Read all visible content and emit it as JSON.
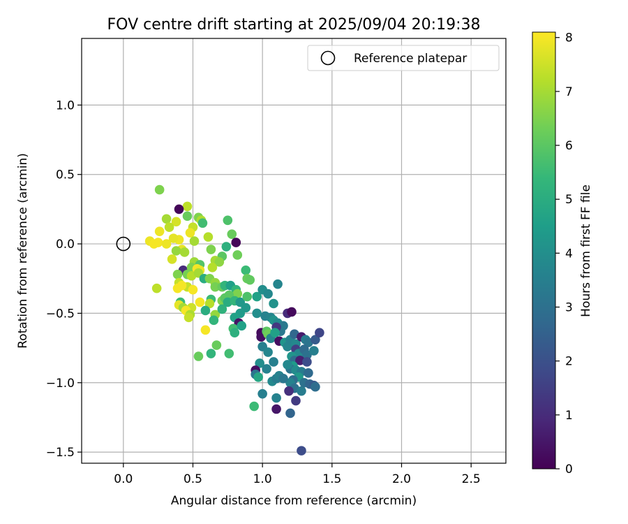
{
  "chart_data": {
    "type": "scatter",
    "title": "FOV centre drift starting at 2025/09/04 20:19:38",
    "xlabel": "Angular distance from reference (arcmin)",
    "ylabel": "Rotation from reference (arcmin)",
    "xlim": [
      -0.3,
      2.75
    ],
    "ylim": [
      -1.58,
      1.48
    ],
    "x_ticks": [
      0.0,
      0.5,
      1.0,
      1.5,
      2.0,
      2.5
    ],
    "x_tick_labels": [
      "0.0",
      "0.5",
      "1.0",
      "1.5",
      "2.0",
      "2.5"
    ],
    "y_ticks": [
      -1.5,
      -1.0,
      -0.5,
      0.0,
      0.5,
      1.0
    ],
    "y_tick_labels": [
      "−1.5",
      "−1.0",
      "−0.5",
      "0.0",
      "0.5",
      "1.0"
    ],
    "grid": true,
    "legend": {
      "placement": "top-right",
      "entries": [
        "Reference platepar"
      ]
    },
    "reference_point": {
      "x": 0.0,
      "y": 0.0,
      "label": "Reference platepar"
    },
    "colorbar": {
      "label": "Hours from first FF file",
      "colormap": "viridis",
      "range": [
        0,
        8.1
      ],
      "ticks": [
        0,
        1,
        2,
        3,
        4,
        5,
        6,
        7,
        8
      ],
      "tick_labels": [
        "0",
        "1",
        "2",
        "3",
        "4",
        "5",
        "6",
        "7",
        "8"
      ],
      "stops": [
        "#440154",
        "#482878",
        "#3e4a89",
        "#31688e",
        "#26828e",
        "#1f9e89",
        "#35b779",
        "#6ece58",
        "#b5de2b",
        "#fde725"
      ]
    },
    "points": [
      [
        0.26,
        0.39,
        6.5
      ],
      [
        0.46,
        0.27,
        7.3
      ],
      [
        0.4,
        0.25,
        0.1
      ],
      [
        0.31,
        0.18,
        7.0
      ],
      [
        0.38,
        0.16,
        7.6
      ],
      [
        0.46,
        0.2,
        6.2
      ],
      [
        0.54,
        0.19,
        6.5
      ],
      [
        0.56,
        0.17,
        7.1
      ],
      [
        0.57,
        0.15,
        5.6
      ],
      [
        0.33,
        0.12,
        7.3
      ],
      [
        0.5,
        0.12,
        7.4
      ],
      [
        0.26,
        0.09,
        7.9
      ],
      [
        0.48,
        0.08,
        7.9
      ],
      [
        0.4,
        0.03,
        7.9
      ],
      [
        0.25,
        0.01,
        8.0
      ],
      [
        0.19,
        0.02,
        7.9
      ],
      [
        0.22,
        0.0,
        8.0
      ],
      [
        0.31,
        0.0,
        7.9
      ],
      [
        0.36,
        0.04,
        7.8
      ],
      [
        0.51,
        0.02,
        7.0
      ],
      [
        0.61,
        0.05,
        7.2
      ],
      [
        0.75,
        0.17,
        5.8
      ],
      [
        0.78,
        0.07,
        6.2
      ],
      [
        0.81,
        0.01,
        0.1
      ],
      [
        0.74,
        -0.02,
        5.1
      ],
      [
        0.42,
        -0.04,
        7.8
      ],
      [
        0.38,
        -0.05,
        6.8
      ],
      [
        0.44,
        -0.06,
        7.0
      ],
      [
        0.63,
        -0.04,
        6.5
      ],
      [
        0.82,
        -0.08,
        6.3
      ],
      [
        0.71,
        -0.09,
        6.0
      ],
      [
        0.35,
        -0.11,
        7.6
      ],
      [
        0.51,
        -0.13,
        6.9
      ],
      [
        0.55,
        -0.15,
        5.9
      ],
      [
        0.66,
        -0.12,
        7.0
      ],
      [
        0.69,
        -0.13,
        6.7
      ],
      [
        0.43,
        -0.19,
        1.0
      ],
      [
        0.49,
        -0.17,
        6.5
      ],
      [
        0.53,
        -0.18,
        8.0
      ],
      [
        0.55,
        -0.19,
        7.9
      ],
      [
        0.64,
        -0.17,
        7.2
      ],
      [
        0.88,
        -0.19,
        5.5
      ],
      [
        0.39,
        -0.22,
        6.5
      ],
      [
        0.46,
        -0.22,
        6.4
      ],
      [
        0.49,
        -0.23,
        7.2
      ],
      [
        0.54,
        -0.21,
        7.0
      ],
      [
        0.58,
        -0.25,
        5.0
      ],
      [
        0.62,
        -0.25,
        6.5
      ],
      [
        0.66,
        -0.28,
        6.8
      ],
      [
        0.89,
        -0.25,
        6.2
      ],
      [
        0.91,
        -0.26,
        6.1
      ],
      [
        0.4,
        -0.28,
        7.4
      ],
      [
        0.46,
        -0.31,
        7.4
      ],
      [
        0.5,
        -0.33,
        8.0
      ],
      [
        0.42,
        -0.3,
        8.0
      ],
      [
        0.39,
        -0.32,
        8.0
      ],
      [
        0.24,
        -0.32,
        7.3
      ],
      [
        0.66,
        -0.31,
        6.4
      ],
      [
        0.71,
        -0.31,
        6.2
      ],
      [
        0.73,
        -0.3,
        5.3
      ],
      [
        0.77,
        -0.3,
        4.6
      ],
      [
        0.81,
        -0.33,
        5.3
      ],
      [
        0.82,
        -0.36,
        6.5
      ],
      [
        0.76,
        -0.37,
        6.0
      ],
      [
        0.71,
        -0.41,
        6.5
      ],
      [
        0.73,
        -0.39,
        6.0
      ],
      [
        0.63,
        -0.4,
        5.5
      ],
      [
        0.55,
        -0.42,
        8.0
      ],
      [
        0.62,
        -0.43,
        7.2
      ],
      [
        0.41,
        -0.42,
        5.5
      ],
      [
        0.4,
        -0.44,
        7.8
      ],
      [
        0.43,
        -0.46,
        7.0
      ],
      [
        0.49,
        -0.46,
        7.5
      ],
      [
        0.45,
        -0.48,
        8.0
      ],
      [
        0.48,
        -0.51,
        7.1
      ],
      [
        0.47,
        -0.53,
        7.4
      ],
      [
        0.59,
        -0.48,
        5.0
      ],
      [
        0.66,
        -0.51,
        6.8
      ],
      [
        0.65,
        -0.55,
        5.3
      ],
      [
        0.71,
        -0.47,
        5.2
      ],
      [
        0.75,
        -0.42,
        5.0
      ],
      [
        0.8,
        -0.41,
        5.3
      ],
      [
        0.84,
        -0.42,
        4.3
      ],
      [
        0.89,
        -0.38,
        5.8
      ],
      [
        0.96,
        -0.38,
        4.6
      ],
      [
        1.0,
        -0.33,
        4.0
      ],
      [
        1.04,
        -0.36,
        3.8
      ],
      [
        1.11,
        -0.29,
        3.7
      ],
      [
        1.08,
        -0.43,
        4.1
      ],
      [
        0.88,
        -0.46,
        4.3
      ],
      [
        0.84,
        -0.5,
        4.4
      ],
      [
        0.8,
        -0.53,
        4.6
      ],
      [
        0.83,
        -0.57,
        0.4
      ],
      [
        0.79,
        -0.61,
        5.6
      ],
      [
        0.85,
        -0.59,
        4.6
      ],
      [
        0.8,
        -0.64,
        5.1
      ],
      [
        0.59,
        -0.62,
        8.0
      ],
      [
        0.67,
        -0.73,
        6.2
      ],
      [
        0.54,
        -0.81,
        6.2
      ],
      [
        0.63,
        -0.79,
        5.3
      ],
      [
        0.76,
        -0.79,
        5.6
      ],
      [
        0.96,
        -0.5,
        4.0
      ],
      [
        1.02,
        -0.52,
        3.6
      ],
      [
        1.06,
        -0.53,
        3.7
      ],
      [
        1.08,
        -0.55,
        4.1
      ],
      [
        1.11,
        -0.57,
        3.8
      ],
      [
        1.15,
        -0.59,
        3.3
      ],
      [
        1.18,
        -0.5,
        1.0
      ],
      [
        1.21,
        -0.49,
        0.2
      ],
      [
        1.13,
        -0.63,
        3.3
      ],
      [
        1.1,
        -0.6,
        1.3
      ],
      [
        0.99,
        -0.64,
        0.2
      ],
      [
        0.99,
        -0.67,
        0.3
      ],
      [
        1.03,
        -0.63,
        6.0
      ],
      [
        1.04,
        -0.65,
        6.3
      ],
      [
        1.06,
        -0.68,
        3.8
      ],
      [
        1.09,
        -0.64,
        4.6
      ],
      [
        1.12,
        -0.7,
        0.3
      ],
      [
        1.16,
        -0.71,
        4.2
      ],
      [
        1.18,
        -0.74,
        3.7
      ],
      [
        1.2,
        -0.69,
        3.6
      ],
      [
        1.23,
        -0.65,
        2.7
      ],
      [
        1.24,
        -0.72,
        3.8
      ],
      [
        1.28,
        -0.67,
        0.6
      ],
      [
        1.31,
        -0.69,
        3.4
      ],
      [
        1.33,
        -0.71,
        3.1
      ],
      [
        1.38,
        -0.69,
        2.3
      ],
      [
        1.41,
        -0.64,
        1.7
      ],
      [
        1.24,
        -0.76,
        1.5
      ],
      [
        1.26,
        -0.79,
        3.8
      ],
      [
        1.3,
        -0.76,
        2.8
      ],
      [
        1.32,
        -0.8,
        3.0
      ],
      [
        1.37,
        -0.77,
        3.5
      ],
      [
        1.21,
        -0.81,
        4.2
      ],
      [
        1.23,
        -0.84,
        2.9
      ],
      [
        1.27,
        -0.84,
        0.7
      ],
      [
        1.32,
        -0.85,
        1.9
      ],
      [
        1.22,
        -0.88,
        4.4
      ],
      [
        1.2,
        -0.9,
        3.1
      ],
      [
        1.18,
        -0.87,
        3.8
      ],
      [
        1.24,
        -0.91,
        3.9
      ],
      [
        1.28,
        -0.92,
        3.4
      ],
      [
        1.26,
        -0.96,
        4.3
      ],
      [
        1.22,
        -0.98,
        2.9
      ],
      [
        1.2,
        -1.0,
        3.6
      ],
      [
        1.23,
        -1.04,
        3.0
      ],
      [
        1.19,
        -1.06,
        1.1
      ],
      [
        1.24,
        -1.13,
        1.4
      ],
      [
        1.28,
        -1.06,
        3.4
      ],
      [
        1.3,
        -1.0,
        3.0
      ],
      [
        1.34,
        -1.01,
        2.6
      ],
      [
        1.37,
        -1.02,
        2.3
      ],
      [
        1.38,
        -1.03,
        2.9
      ],
      [
        1.33,
        -0.93,
        2.8
      ],
      [
        1.0,
        -0.74,
        3.5
      ],
      [
        1.04,
        -0.78,
        3.7
      ],
      [
        0.98,
        -0.86,
        4.0
      ],
      [
        1.03,
        -0.9,
        3.6
      ],
      [
        1.08,
        -0.85,
        3.5
      ],
      [
        0.95,
        -0.91,
        0.3
      ],
      [
        0.95,
        -0.94,
        3.2
      ],
      [
        0.97,
        -0.96,
        4.8
      ],
      [
        1.07,
        -0.99,
        3.8
      ],
      [
        1.1,
        -0.97,
        3.4
      ],
      [
        1.12,
        -0.95,
        3.6
      ],
      [
        1.15,
        -0.97,
        3.2
      ],
      [
        1.0,
        -1.08,
        3.5
      ],
      [
        1.1,
        -1.11,
        3.6
      ],
      [
        0.94,
        -1.17,
        5.5
      ],
      [
        1.1,
        -1.19,
        0.5
      ],
      [
        1.2,
        -1.22,
        2.6
      ],
      [
        1.28,
        -1.49,
        1.9
      ]
    ]
  }
}
